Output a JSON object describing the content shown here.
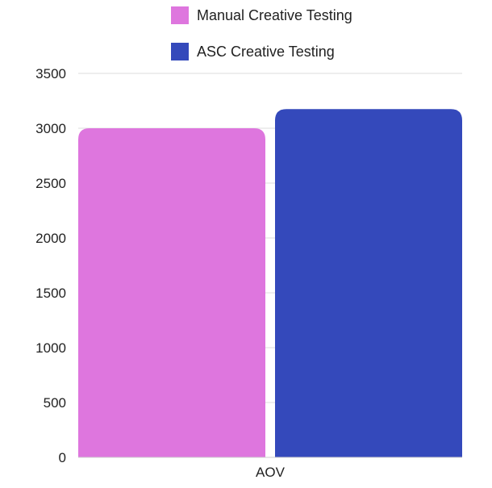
{
  "chart_data": {
    "type": "bar",
    "title": "",
    "xlabel": "",
    "ylabel": "",
    "categories": [
      "AOV"
    ],
    "series": [
      {
        "name": "Manual Creative Testing",
        "values": [
          3000
        ],
        "color": "#DE76DE"
      },
      {
        "name": "ASC Creative Testing",
        "values": [
          3175
        ],
        "color": "#3449BB"
      }
    ],
    "ylim": [
      0,
      3500
    ],
    "y_ticks": [
      "0",
      "500",
      "1000",
      "1500",
      "2000",
      "2500",
      "3000",
      "3500"
    ],
    "grid": true,
    "legend_position": "top"
  }
}
